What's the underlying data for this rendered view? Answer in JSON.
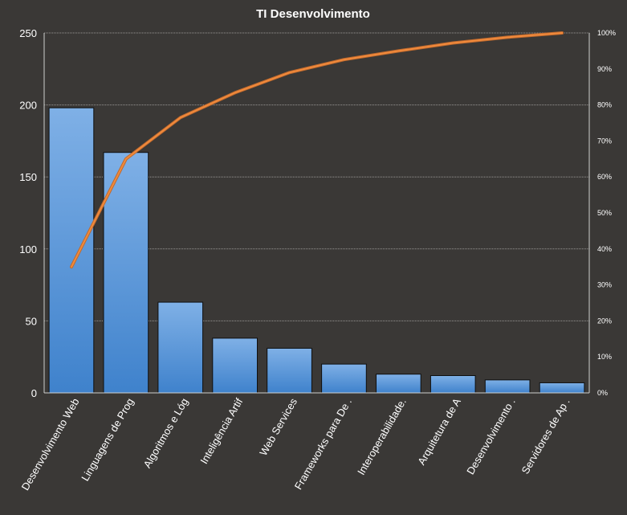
{
  "chart_data": {
    "type": "bar",
    "title": "TI Desenvolvimento",
    "categories": [
      "Desenvolvimento Web",
      "Linguagens de Prog",
      "Algoritmos e Lóg",
      "Inteligência Artif",
      "Web Services",
      "Frameworks  para De .",
      "Interoperabilidade.",
      "Arquitetura  de A",
      "Desenvolvimento .",
      "Servidores de Ap ."
    ],
    "series": [
      {
        "type": "bar",
        "values": [
          198,
          167,
          63,
          38,
          31,
          20,
          13,
          12,
          9,
          7
        ]
      },
      {
        "type": "line",
        "axis": "secondary",
        "values": [
          0.35,
          0.65,
          0.765,
          0.834,
          0.89,
          0.926,
          0.95,
          0.972,
          0.988,
          1.0
        ]
      }
    ],
    "ylim": [
      0,
      250
    ],
    "yticks": [
      0,
      50,
      100,
      150,
      200,
      250
    ],
    "y2lim": [
      0,
      1
    ],
    "y2ticks": [
      "0%",
      "10%",
      "20%",
      "30%",
      "40%",
      "50%",
      "60%",
      "70%",
      "80%",
      "90%",
      "100%"
    ],
    "grid": true,
    "legend": "none",
    "colors": {
      "background": "#3a3836",
      "bar_top": "#7fb0e6",
      "bar_bottom": "#3f82cc",
      "line": "#e8792e",
      "grid": "#9a9896",
      "text": "#ffffff"
    }
  }
}
